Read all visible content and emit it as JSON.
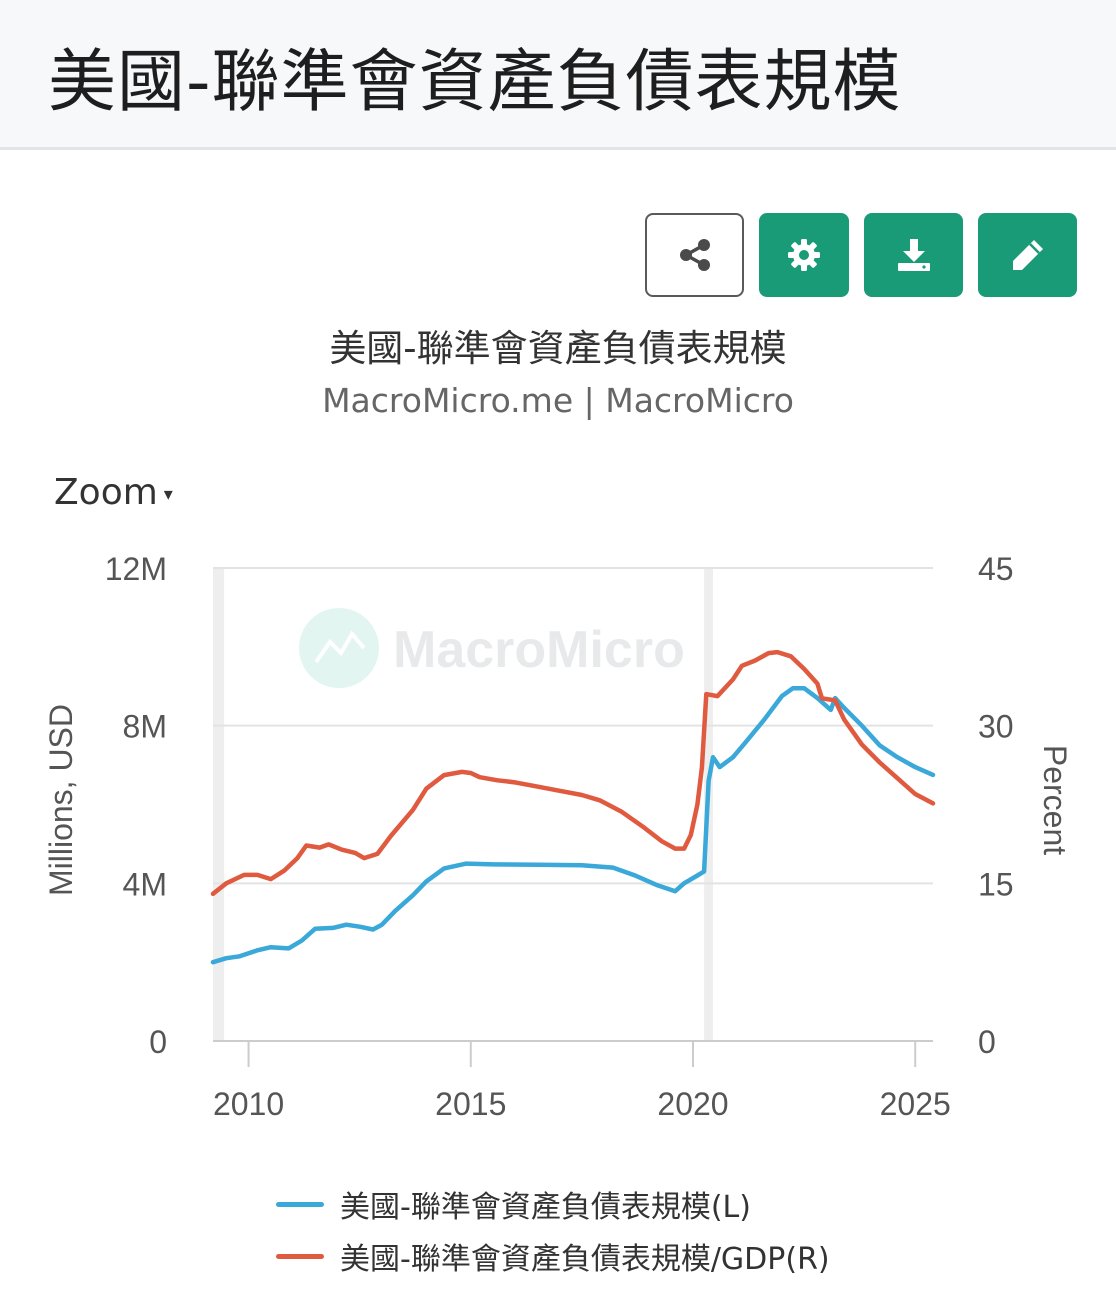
{
  "page": {
    "title": "美國-聯準會資產負債表規模"
  },
  "toolbar": {
    "share_icon": "share-icon",
    "settings_icon": "gear-icon",
    "download_icon": "download-icon",
    "edit_icon": "pencil-icon",
    "accent": "#1a9b78"
  },
  "zoom": {
    "label": "Zoom",
    "arrow": "▾"
  },
  "watermark": {
    "text": "MacroMicro",
    "icon": "macromicro-logo-icon"
  },
  "chart_data": {
    "type": "line",
    "title": "美國-聯準會資產負債表規模",
    "subtitle": "MacroMicro.me | MacroMicro",
    "grid": true,
    "legend_position": "bottom",
    "x_ticks": [
      "2010",
      "2015",
      "2020",
      "2025"
    ],
    "xlim": [
      2009.2,
      2025.4
    ],
    "y_left": {
      "label": "Millions, USD",
      "range": [
        0,
        12000000
      ],
      "ticks": [
        "0",
        "4M",
        "8M",
        "12M"
      ]
    },
    "y_right": {
      "label": "Percent",
      "range": [
        0,
        45
      ],
      "ticks": [
        "0",
        "15",
        "30",
        "45"
      ]
    },
    "series": [
      {
        "name": "美國-聯準會資產負債表規模(L)",
        "axis": "left",
        "color": "#3aa8d8",
        "points": [
          [
            2009.2,
            2000000
          ],
          [
            2009.5,
            2100000
          ],
          [
            2009.8,
            2150000
          ],
          [
            2010.2,
            2300000
          ],
          [
            2010.5,
            2380000
          ],
          [
            2010.9,
            2350000
          ],
          [
            2011.2,
            2550000
          ],
          [
            2011.5,
            2850000
          ],
          [
            2011.9,
            2870000
          ],
          [
            2012.2,
            2950000
          ],
          [
            2012.5,
            2900000
          ],
          [
            2012.8,
            2830000
          ],
          [
            2013.0,
            2950000
          ],
          [
            2013.3,
            3300000
          ],
          [
            2013.7,
            3700000
          ],
          [
            2014.0,
            4050000
          ],
          [
            2014.4,
            4380000
          ],
          [
            2014.9,
            4500000
          ],
          [
            2015.5,
            4480000
          ],
          [
            2016.5,
            4470000
          ],
          [
            2017.5,
            4460000
          ],
          [
            2018.2,
            4400000
          ],
          [
            2018.7,
            4200000
          ],
          [
            2019.2,
            3950000
          ],
          [
            2019.6,
            3800000
          ],
          [
            2019.8,
            4000000
          ],
          [
            2020.1,
            4200000
          ],
          [
            2020.25,
            4300000
          ],
          [
            2020.35,
            6600000
          ],
          [
            2020.45,
            7200000
          ],
          [
            2020.6,
            6950000
          ],
          [
            2020.9,
            7200000
          ],
          [
            2021.2,
            7600000
          ],
          [
            2021.6,
            8150000
          ],
          [
            2022.0,
            8750000
          ],
          [
            2022.25,
            8950000
          ],
          [
            2022.5,
            8950000
          ],
          [
            2022.8,
            8700000
          ],
          [
            2023.1,
            8400000
          ],
          [
            2023.2,
            8700000
          ],
          [
            2023.4,
            8450000
          ],
          [
            2023.8,
            8000000
          ],
          [
            2024.2,
            7500000
          ],
          [
            2024.6,
            7200000
          ],
          [
            2025.0,
            6950000
          ],
          [
            2025.4,
            6750000
          ]
        ]
      },
      {
        "name": "美國-聯準會資產負債表規模/GDP(R)",
        "axis": "right",
        "color": "#e05a3f",
        "points": [
          [
            2009.2,
            14.0
          ],
          [
            2009.5,
            15.0
          ],
          [
            2009.9,
            15.8
          ],
          [
            2010.2,
            15.8
          ],
          [
            2010.5,
            15.4
          ],
          [
            2010.8,
            16.2
          ],
          [
            2011.1,
            17.4
          ],
          [
            2011.3,
            18.6
          ],
          [
            2011.6,
            18.4
          ],
          [
            2011.8,
            18.7
          ],
          [
            2012.1,
            18.2
          ],
          [
            2012.4,
            17.9
          ],
          [
            2012.6,
            17.4
          ],
          [
            2012.9,
            17.8
          ],
          [
            2013.2,
            19.5
          ],
          [
            2013.7,
            22.0
          ],
          [
            2014.0,
            24.0
          ],
          [
            2014.4,
            25.3
          ],
          [
            2014.8,
            25.6
          ],
          [
            2015.0,
            25.5
          ],
          [
            2015.2,
            25.1
          ],
          [
            2015.6,
            24.8
          ],
          [
            2016.0,
            24.6
          ],
          [
            2016.5,
            24.2
          ],
          [
            2017.0,
            23.8
          ],
          [
            2017.5,
            23.4
          ],
          [
            2017.9,
            22.9
          ],
          [
            2018.4,
            21.8
          ],
          [
            2018.9,
            20.3
          ],
          [
            2019.3,
            19.0
          ],
          [
            2019.6,
            18.3
          ],
          [
            2019.8,
            18.3
          ],
          [
            2019.95,
            19.6
          ],
          [
            2020.1,
            22.5
          ],
          [
            2020.2,
            26.0
          ],
          [
            2020.3,
            33.0
          ],
          [
            2020.55,
            32.8
          ],
          [
            2020.9,
            34.4
          ],
          [
            2021.1,
            35.7
          ],
          [
            2021.4,
            36.2
          ],
          [
            2021.7,
            36.9
          ],
          [
            2021.9,
            37.0
          ],
          [
            2022.2,
            36.6
          ],
          [
            2022.5,
            35.4
          ],
          [
            2022.8,
            34.0
          ],
          [
            2022.9,
            32.6
          ],
          [
            2023.2,
            32.4
          ],
          [
            2023.4,
            30.6
          ],
          [
            2023.8,
            28.2
          ],
          [
            2024.2,
            26.5
          ],
          [
            2024.6,
            25.0
          ],
          [
            2025.0,
            23.5
          ],
          [
            2025.4,
            22.6
          ]
        ]
      }
    ]
  }
}
